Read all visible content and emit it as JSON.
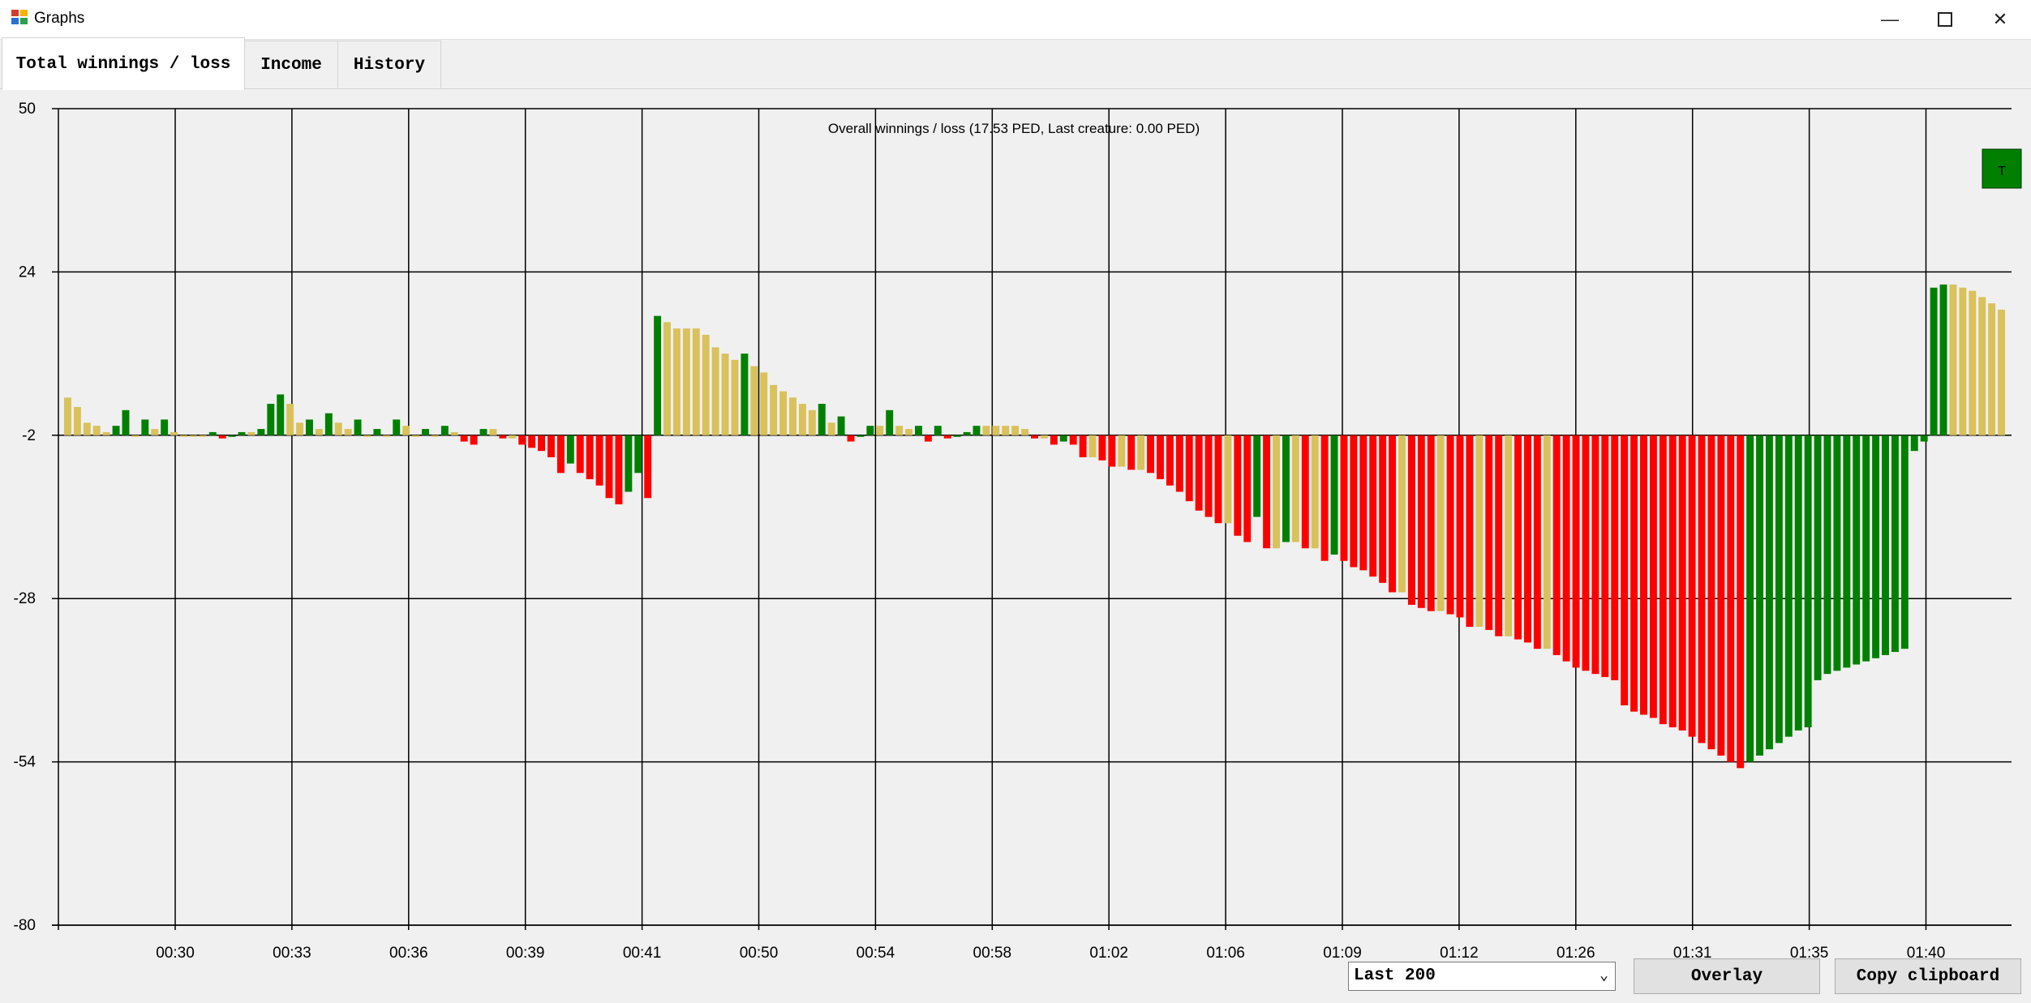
{
  "window": {
    "title": "Graphs"
  },
  "tabs": [
    {
      "label": "Total winnings / loss",
      "active": true
    },
    {
      "label": "Income",
      "active": false
    },
    {
      "label": "History",
      "active": false
    }
  ],
  "controls": {
    "range_select": {
      "value": "Last 200"
    },
    "overlay_label": "Overlay",
    "copy_label": "Copy clipboard"
  },
  "legend_marker": {
    "label": "T",
    "color": "#007f00"
  },
  "colors": {
    "win": "#008000",
    "loss": "#ff0000",
    "neutral": "#d9c15c"
  },
  "chart_data": {
    "type": "bar",
    "title": "Overall winnings / loss (17.53 PED, Last creature: 0.00 PED)",
    "ylim": [
      -80,
      50
    ],
    "yticks": [
      50,
      24,
      -2,
      -28,
      -54,
      -80
    ],
    "baseline": -2,
    "grid": true,
    "xtick_labels": [
      "00:30",
      "00:33",
      "00:36",
      "00:39",
      "00:41",
      "00:50",
      "00:54",
      "00:58",
      "01:02",
      "01:06",
      "01:09",
      "01:12",
      "01:26",
      "01:31",
      "01:35",
      "01:40"
    ],
    "values": [
      4.0,
      2.5,
      0.0,
      -0.5,
      -1.5,
      -0.5,
      2.0,
      -2.0,
      0.5,
      -1.0,
      0.5,
      -1.5,
      -2.0,
      -2.0,
      -2.0,
      -1.5,
      -2.5,
      -2.0,
      -1.5,
      -1.5,
      -1.0,
      3.0,
      4.5,
      3.0,
      0.0,
      0.5,
      -1.0,
      1.5,
      0.0,
      -1.0,
      0.5,
      -2.0,
      -1.0,
      -2.0,
      0.5,
      -0.5,
      -2.0,
      -1.0,
      -2.0,
      -0.5,
      -1.5,
      -3.0,
      -3.5,
      -1.0,
      -1.0,
      -2.5,
      -2.5,
      -3.5,
      -4.0,
      -4.5,
      -5.5,
      -8.0,
      -6.5,
      -8.0,
      -9.0,
      -10.0,
      -12.0,
      -13.0,
      -11.0,
      -8.0,
      -12.0,
      17.0,
      16.0,
      15.0,
      15.0,
      15.0,
      14.0,
      12.0,
      11.0,
      10.0,
      11.0,
      9.0,
      8.0,
      6.0,
      5.0,
      4.0,
      3.0,
      2.0,
      3.0,
      0.0,
      1.0,
      -3.0,
      -2.0,
      -0.5,
      -0.5,
      2.0,
      -0.5,
      -1.0,
      -0.5,
      -3.0,
      -0.5,
      -2.5,
      -2.0,
      -1.5,
      -0.5,
      -0.5,
      -0.5,
      -0.5,
      -0.5,
      -1.0,
      -2.5,
      -2.5,
      -3.5,
      -3.0,
      -3.5,
      -5.5,
      -5.5,
      -6.0,
      -7.0,
      -7.0,
      -7.5,
      -7.5,
      -8.0,
      -9.0,
      -10.0,
      -11.0,
      -12.5,
      -14.0,
      -15.0,
      -16.0,
      -16.0,
      -18.0,
      -19.0,
      -15.0,
      -20.0,
      -20.0,
      -19.0,
      -19.0,
      -20.0,
      -20.0,
      -22.0,
      -21.0,
      -22.0,
      -23.0,
      -23.5,
      -24.5,
      -25.5,
      -27.0,
      -27.0,
      -29.0,
      -29.5,
      -30.0,
      -30.0,
      -30.5,
      -31.0,
      -32.5,
      -32.5,
      -33.0,
      -34.0,
      -34.0,
      -34.5,
      -35.0,
      -36.0,
      -36.0,
      -37.0,
      -38.0,
      -39.0,
      -39.5,
      -40.0,
      -40.5,
      -41.0,
      -45.0,
      -46.0,
      -46.5,
      -47.0,
      -48.0,
      -48.5,
      -49.0,
      -50.0,
      -51.0,
      -52.0,
      -53.0,
      -54.0,
      -55.0,
      -54.0,
      -53.0,
      -52.0,
      -51.0,
      -50.0,
      -49.0,
      -48.5,
      -41.0,
      -40.0,
      -39.5,
      -39.0,
      -38.5,
      -38.0,
      -37.5,
      -37.0,
      -36.5,
      -36.0,
      -4.5,
      -3.0,
      21.5,
      22.0,
      22.0,
      21.5,
      21.0,
      20.0,
      19.0,
      18.0
    ]
  }
}
